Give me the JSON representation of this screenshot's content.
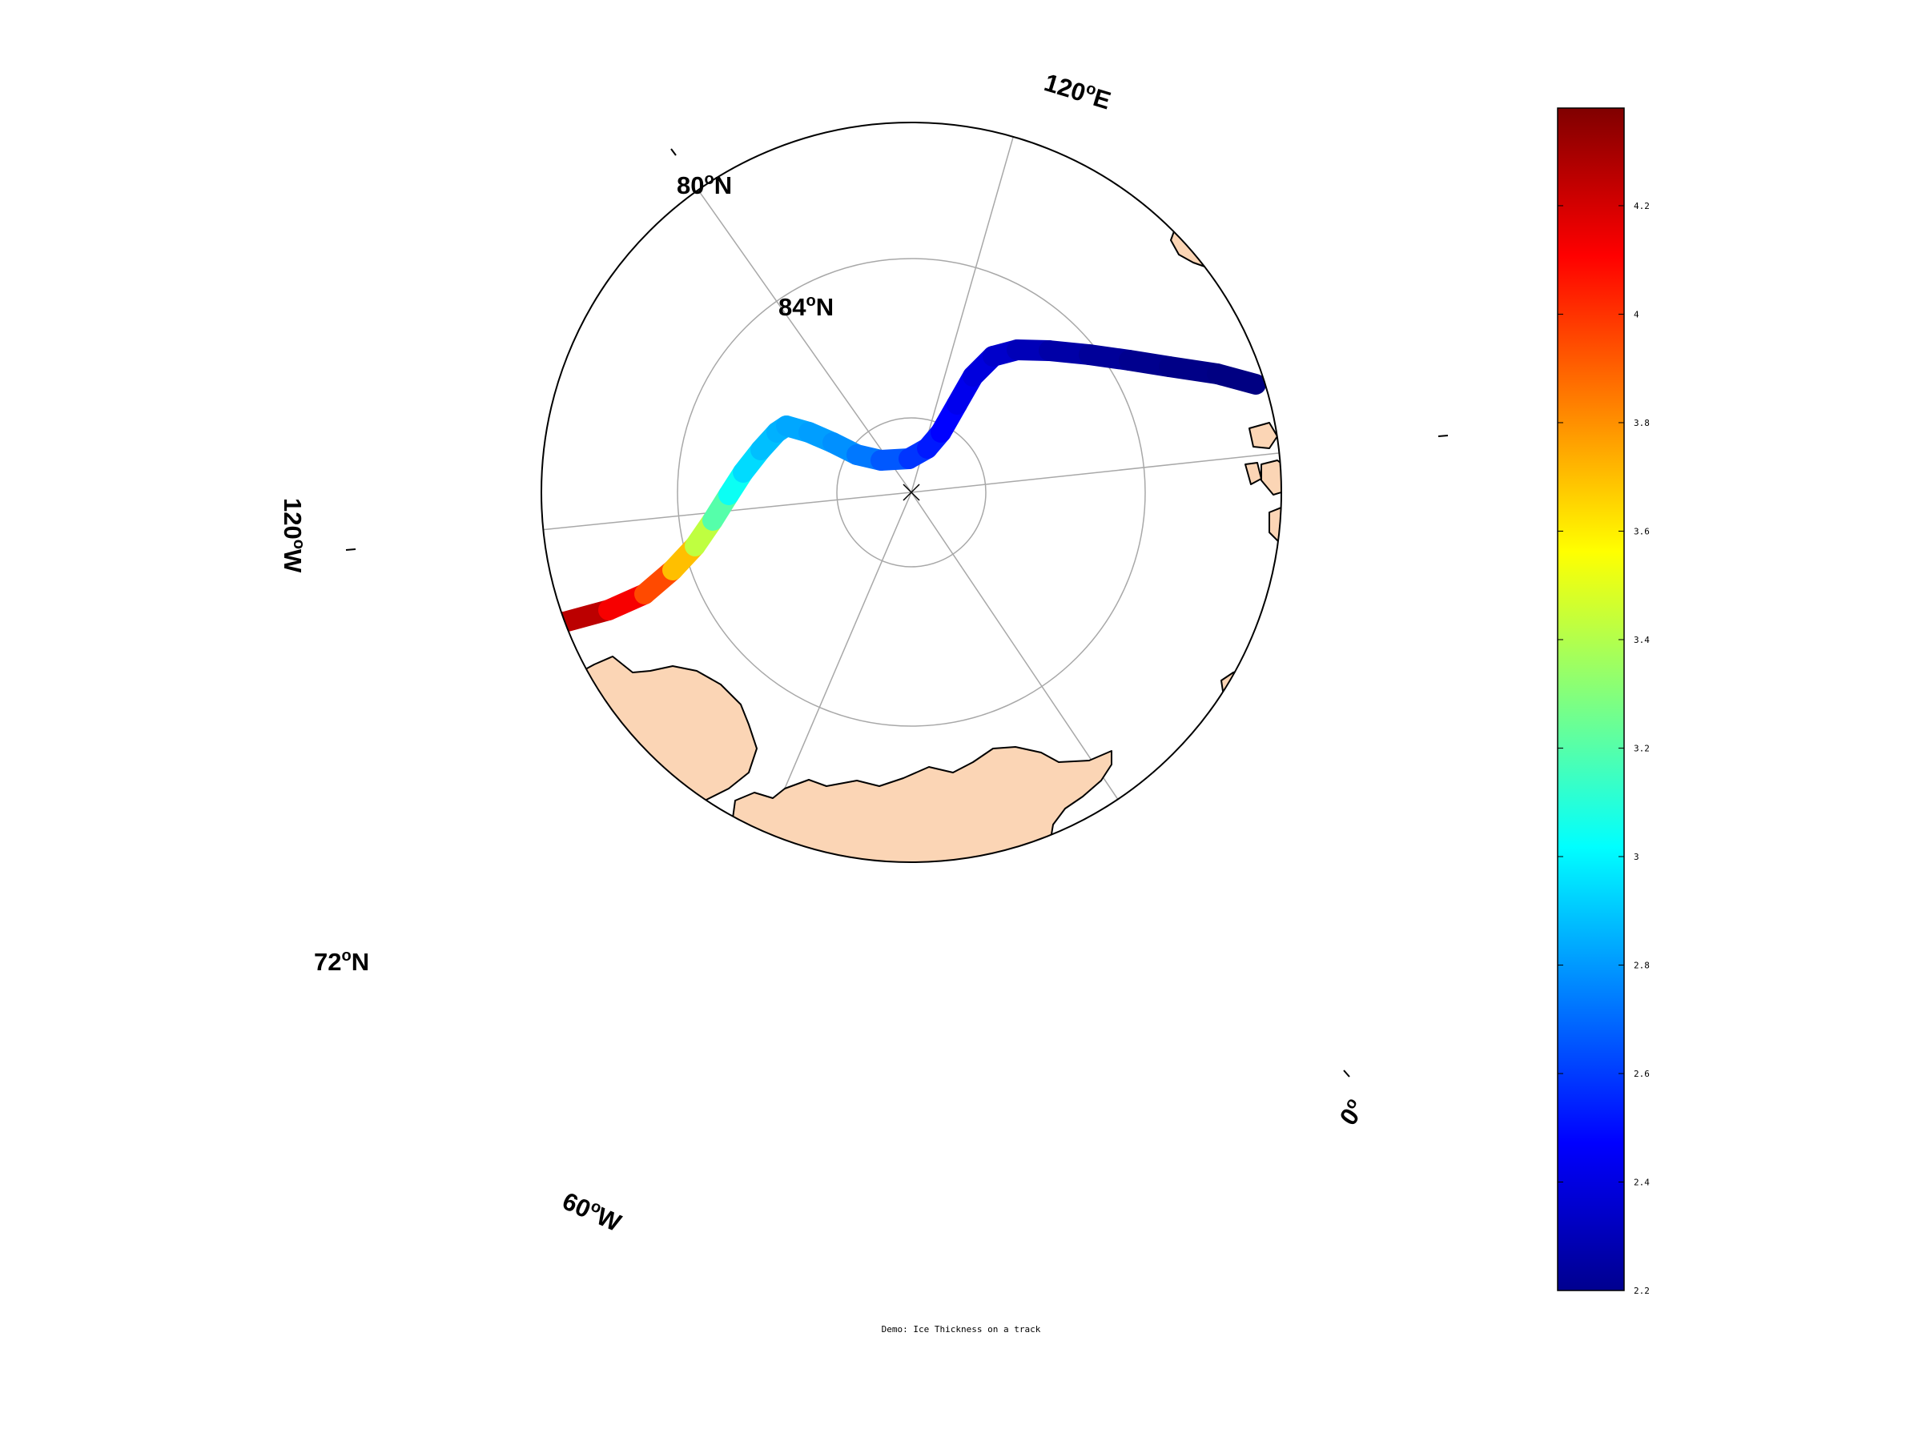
{
  "map": {
    "projection": "north polar stereographic",
    "land_color": "#fbd5b5",
    "coastline_color": "#000000",
    "graticule_color": "#a8a8a8",
    "pole_marker": "x-icon",
    "labels": {
      "lat_80": {
        "deg": "80",
        "hemi": "N"
      },
      "lat_84": {
        "deg": "84",
        "hemi": "N"
      },
      "lat_72": {
        "deg": "72",
        "hemi": "N"
      },
      "lon_120e": {
        "deg": "120",
        "hemi": "E"
      },
      "lon_120w": {
        "deg": "120",
        "hemi": "W"
      },
      "lon_60w": {
        "deg": "60",
        "hemi": "W"
      },
      "lon_0": {
        "deg": "0",
        "hemi": ""
      }
    },
    "degree_symbol": "o"
  },
  "chart_data": {
    "type": "track",
    "title": "Demo: Ice Thickness on a track",
    "colormap": "jet",
    "clim": [
      2.2,
      4.38
    ],
    "colorbar_ticks": [
      "2.2",
      "2.4",
      "2.6",
      "2.8",
      "3",
      "3.2",
      "3.4",
      "3.6",
      "3.8",
      "4",
      "4.2"
    ],
    "track": {
      "direction": "from the Canadian Arctic Archipelago side across the pole toward Franz Josef Land",
      "values": [
        4.38,
        4.3,
        4.2,
        4.05,
        3.85,
        3.55,
        3.3,
        3.1,
        2.98,
        2.9,
        2.86,
        2.84,
        2.82,
        2.8,
        2.76,
        2.7,
        2.62,
        2.55,
        2.5,
        2.45,
        2.42,
        2.38,
        2.34,
        2.3,
        2.27,
        2.24,
        2.22,
        2.21,
        2.2
      ]
    }
  }
}
